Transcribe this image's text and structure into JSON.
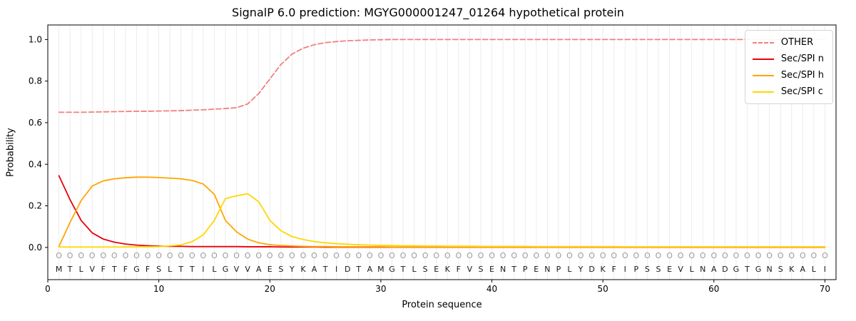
{
  "chart_data": {
    "type": "line",
    "title": "SignalP 6.0 prediction: MGYG000001247_01264 hypothetical protein",
    "xlabel": "Protein sequence",
    "ylabel": "Probability",
    "xlim": [
      0,
      71
    ],
    "ylim": [
      -0.155,
      1.07
    ],
    "xticks": [
      0,
      10,
      20,
      30,
      40,
      50,
      60,
      70
    ],
    "yticks": [
      0.0,
      0.2,
      0.4,
      0.6,
      0.8,
      1.0
    ],
    "grid": "vertical line at every residue position",
    "legend_position": "upper right",
    "x_start": 1,
    "x_step": 1,
    "sequence": "MTLVFTFGFSLTTILGVVAESYKATIDTAMGTLSEKFVSENTPENPLYDKFIPSSEVLNADGTGNSKALI",
    "residue_marker": "O",
    "series": [
      {
        "name": "OTHER",
        "color": "#f08080",
        "dashed": true,
        "values": [
          0.65,
          0.65,
          0.65,
          0.651,
          0.652,
          0.653,
          0.654,
          0.655,
          0.655,
          0.656,
          0.657,
          0.658,
          0.66,
          0.662,
          0.665,
          0.668,
          0.672,
          0.69,
          0.74,
          0.81,
          0.88,
          0.93,
          0.958,
          0.975,
          0.985,
          0.99,
          0.994,
          0.996,
          0.998,
          0.999,
          1.0,
          1.0,
          1.0,
          1.0,
          1.0,
          1.0,
          1.0,
          1.0,
          1.0,
          1.0,
          1.0,
          1.0,
          1.0,
          1.0,
          1.0,
          1.0,
          1.0,
          1.0,
          1.0,
          1.0,
          1.0,
          1.0,
          1.0,
          1.0,
          1.0,
          1.0,
          1.0,
          1.0,
          1.0,
          1.0,
          1.0,
          1.0,
          1.0,
          1.0,
          1.0,
          1.0,
          1.0,
          1.0,
          1.0,
          1.0
        ]
      },
      {
        "name": "Sec/SPI n",
        "color": "#e8000b",
        "dashed": false,
        "values": [
          0.345,
          0.23,
          0.13,
          0.07,
          0.04,
          0.025,
          0.016,
          0.011,
          0.008,
          0.006,
          0.005,
          0.005,
          0.004,
          0.004,
          0.004,
          0.004,
          0.004,
          0.003,
          0.003,
          0.003,
          0.002,
          0.002,
          0.002,
          0.002,
          0.001,
          0.001,
          0.001,
          0.001,
          0.001,
          0.001,
          0.001,
          0.001,
          0.001,
          0.001,
          0.001,
          0.001,
          0.001,
          0.001,
          0.001,
          0.001,
          0.001,
          0.001,
          0.001,
          0.001,
          0.001,
          0.001,
          0.001,
          0.001,
          0.001,
          0.001,
          0.001,
          0.001,
          0.001,
          0.001,
          0.001,
          0.001,
          0.001,
          0.001,
          0.001,
          0.001,
          0.001,
          0.001,
          0.001,
          0.001,
          0.001,
          0.001,
          0.001,
          0.001,
          0.001,
          0.001
        ]
      },
      {
        "name": "Sec/SPI h",
        "color": "#ffa500",
        "dashed": false,
        "values": [
          0.004,
          0.12,
          0.225,
          0.295,
          0.32,
          0.33,
          0.335,
          0.338,
          0.338,
          0.336,
          0.333,
          0.33,
          0.322,
          0.305,
          0.255,
          0.13,
          0.075,
          0.04,
          0.022,
          0.013,
          0.009,
          0.007,
          0.005,
          0.004,
          0.004,
          0.003,
          0.003,
          0.003,
          0.003,
          0.003,
          0.002,
          0.002,
          0.002,
          0.002,
          0.002,
          0.002,
          0.002,
          0.002,
          0.002,
          0.002,
          0.002,
          0.002,
          0.002,
          0.002,
          0.002,
          0.002,
          0.002,
          0.002,
          0.002,
          0.002,
          0.002,
          0.002,
          0.002,
          0.002,
          0.002,
          0.002,
          0.002,
          0.002,
          0.002,
          0.002,
          0.002,
          0.002,
          0.002,
          0.002,
          0.002,
          0.002,
          0.002,
          0.002,
          0.002,
          0.002
        ]
      },
      {
        "name": "Sec/SPI c",
        "color": "#ffd700",
        "dashed": false,
        "values": [
          0.002,
          0.002,
          0.002,
          0.002,
          0.002,
          0.002,
          0.002,
          0.003,
          0.003,
          0.004,
          0.007,
          0.012,
          0.028,
          0.06,
          0.13,
          0.235,
          0.248,
          0.258,
          0.22,
          0.13,
          0.08,
          0.052,
          0.038,
          0.028,
          0.022,
          0.018,
          0.015,
          0.013,
          0.011,
          0.01,
          0.009,
          0.008,
          0.008,
          0.007,
          0.007,
          0.006,
          0.006,
          0.006,
          0.005,
          0.005,
          0.005,
          0.005,
          0.005,
          0.004,
          0.004,
          0.004,
          0.004,
          0.004,
          0.004,
          0.004,
          0.004,
          0.003,
          0.003,
          0.003,
          0.003,
          0.003,
          0.003,
          0.003,
          0.003,
          0.003,
          0.003,
          0.003,
          0.003,
          0.003,
          0.003,
          0.003,
          0.003,
          0.003,
          0.003,
          0.003
        ]
      }
    ]
  }
}
